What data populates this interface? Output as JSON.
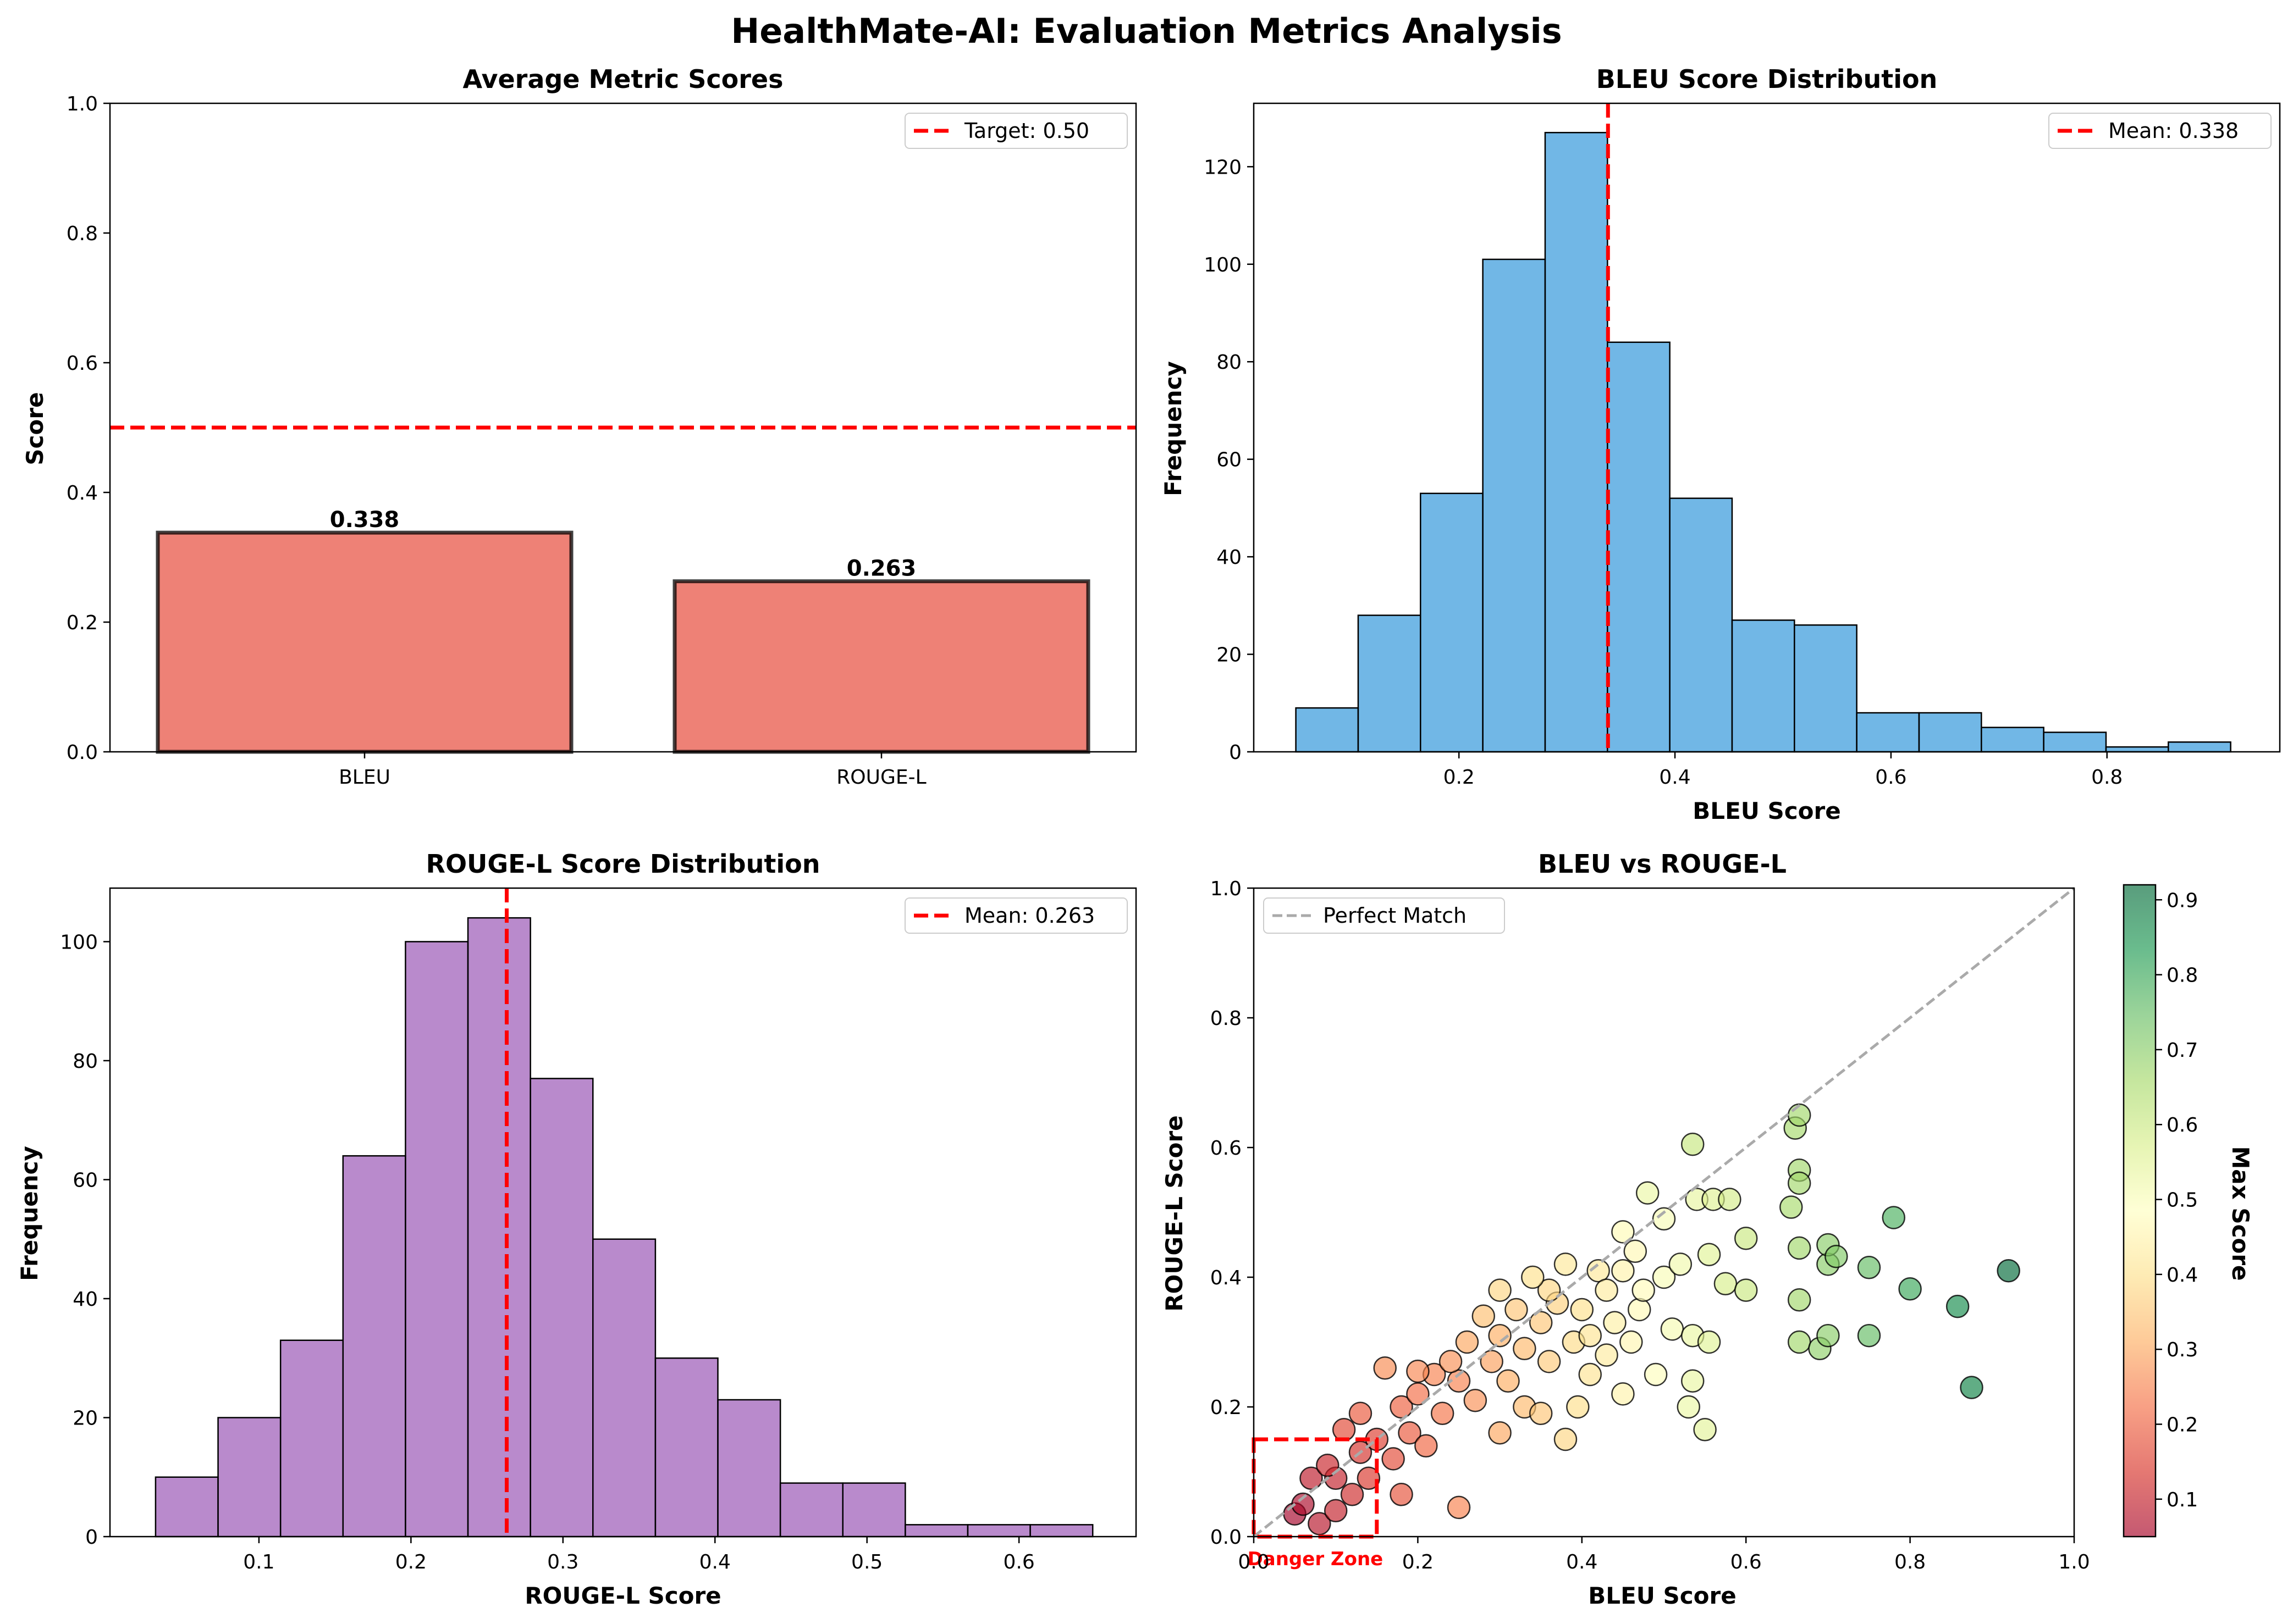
{
  "figure": {
    "suptitle": "HealthMate-AI: Evaluation Metrics Analysis"
  },
  "colors": {
    "bar_fill": "#e74c3c",
    "bleu_hist": "#3498db",
    "rouge_hist": "#9b59b6",
    "mean_line": "#ff0000",
    "perfect_line": "#aaaaaa",
    "danger": "#ff0000"
  },
  "chart_data": [
    {
      "type": "bar",
      "title": "Average Metric Scores",
      "xlabel": "",
      "ylabel": "Score",
      "categories": [
        "BLEU",
        "ROUGE-L"
      ],
      "values": [
        0.338,
        0.263
      ],
      "value_labels": [
        "0.338",
        "0.263"
      ],
      "ylim": [
        0,
        1
      ],
      "yticks": [
        "0.0",
        "0.2",
        "0.4",
        "0.6",
        "0.8",
        "1.0"
      ],
      "reference_line": {
        "value": 0.5,
        "label": "Target: 0.50"
      },
      "legend": "top-right"
    },
    {
      "type": "bar",
      "subtype": "histogram",
      "title": "BLEU Score Distribution",
      "xlabel": "BLEU Score",
      "ylabel": "Frequency",
      "bin_start": 0.049,
      "bin_width": 0.0577,
      "counts": [
        9,
        28,
        53,
        101,
        127,
        84,
        52,
        27,
        26,
        8,
        8,
        5,
        4,
        1,
        2
      ],
      "xlim": [
        0.01,
        0.96
      ],
      "ylim": [
        0,
        133
      ],
      "xticks": [
        "0.2",
        "0.4",
        "0.6",
        "0.8"
      ],
      "yticks": [
        "0",
        "20",
        "40",
        "60",
        "80",
        "100",
        "120"
      ],
      "mean_line": {
        "value": 0.338,
        "label": "Mean: 0.338"
      },
      "legend": "top-right"
    },
    {
      "type": "bar",
      "subtype": "histogram",
      "title": "ROUGE-L Score Distribution",
      "xlabel": "ROUGE-L Score",
      "ylabel": "Frequency",
      "bin_start": 0.032,
      "bin_width": 0.0411,
      "counts": [
        10,
        20,
        33,
        64,
        100,
        104,
        77,
        50,
        30,
        23,
        9,
        9,
        2,
        2,
        2
      ],
      "xlim": [
        0.002,
        0.677
      ],
      "ylim": [
        0,
        109
      ],
      "xticks": [
        "0.1",
        "0.2",
        "0.3",
        "0.4",
        "0.5",
        "0.6"
      ],
      "yticks": [
        "0",
        "20",
        "40",
        "60",
        "80",
        "100"
      ],
      "mean_line": {
        "value": 0.263,
        "label": "Mean: 0.263"
      },
      "legend": "top-right"
    },
    {
      "type": "scatter",
      "title": "BLEU vs ROUGE-L",
      "xlabel": "BLEU Score",
      "ylabel": "ROUGE-L Score",
      "xlim": [
        0,
        1
      ],
      "ylim": [
        0,
        1
      ],
      "xticks": [
        "0.0",
        "0.2",
        "0.4",
        "0.6",
        "0.8",
        "1.0"
      ],
      "yticks": [
        "0.0",
        "0.2",
        "0.4",
        "0.6",
        "0.8",
        "1.0"
      ],
      "reference_line": {
        "label": "Perfect Match",
        "from": [
          0,
          0
        ],
        "to": [
          1,
          1
        ]
      },
      "danger_zone": {
        "x": [
          0,
          0.15
        ],
        "y": [
          0,
          0.15
        ],
        "label": "Danger Zone"
      },
      "colorbar": {
        "label": "Max Score",
        "range": [
          0.05,
          0.92
        ],
        "ticks": [
          "0.1",
          "0.2",
          "0.3",
          "0.4",
          "0.5",
          "0.6",
          "0.7",
          "0.8",
          "0.9"
        ],
        "colormap": "RdYlGn"
      },
      "legend": "top-left",
      "points": [
        [
          0.92,
          0.41
        ],
        [
          0.875,
          0.23
        ],
        [
          0.858,
          0.355
        ],
        [
          0.8,
          0.382
        ],
        [
          0.78,
          0.492
        ],
        [
          0.75,
          0.31
        ],
        [
          0.75,
          0.415
        ],
        [
          0.71,
          0.432
        ],
        [
          0.7,
          0.42
        ],
        [
          0.7,
          0.45
        ],
        [
          0.7,
          0.31
        ],
        [
          0.69,
          0.29
        ],
        [
          0.665,
          0.65
        ],
        [
          0.665,
          0.565
        ],
        [
          0.665,
          0.545
        ],
        [
          0.665,
          0.445
        ],
        [
          0.665,
          0.365
        ],
        [
          0.665,
          0.3
        ],
        [
          0.66,
          0.63
        ],
        [
          0.655,
          0.508
        ],
        [
          0.6,
          0.46
        ],
        [
          0.6,
          0.38
        ],
        [
          0.58,
          0.52
        ],
        [
          0.575,
          0.39
        ],
        [
          0.56,
          0.52
        ],
        [
          0.555,
          0.435
        ],
        [
          0.555,
          0.3
        ],
        [
          0.55,
          0.165
        ],
        [
          0.54,
          0.52
        ],
        [
          0.535,
          0.605
        ],
        [
          0.535,
          0.31
        ],
        [
          0.535,
          0.24
        ],
        [
          0.53,
          0.2
        ],
        [
          0.52,
          0.42
        ],
        [
          0.51,
          0.32
        ],
        [
          0.5,
          0.49
        ],
        [
          0.5,
          0.4
        ],
        [
          0.49,
          0.25
        ],
        [
          0.48,
          0.53
        ],
        [
          0.475,
          0.38
        ],
        [
          0.47,
          0.35
        ],
        [
          0.465,
          0.44
        ],
        [
          0.46,
          0.3
        ],
        [
          0.45,
          0.47
        ],
        [
          0.45,
          0.41
        ],
        [
          0.45,
          0.22
        ],
        [
          0.44,
          0.33
        ],
        [
          0.43,
          0.38
        ],
        [
          0.43,
          0.28
        ],
        [
          0.42,
          0.41
        ],
        [
          0.41,
          0.25
        ],
        [
          0.4,
          0.35
        ],
        [
          0.395,
          0.2
        ],
        [
          0.39,
          0.3
        ],
        [
          0.38,
          0.42
        ],
        [
          0.38,
          0.15
        ],
        [
          0.37,
          0.36
        ],
        [
          0.36,
          0.27
        ],
        [
          0.35,
          0.33
        ],
        [
          0.35,
          0.19
        ],
        [
          0.34,
          0.4
        ],
        [
          0.33,
          0.29
        ],
        [
          0.33,
          0.2
        ],
        [
          0.32,
          0.35
        ],
        [
          0.31,
          0.24
        ],
        [
          0.3,
          0.31
        ],
        [
          0.3,
          0.16
        ],
        [
          0.29,
          0.27
        ],
        [
          0.28,
          0.34
        ],
        [
          0.27,
          0.21
        ],
        [
          0.26,
          0.3
        ],
        [
          0.25,
          0.24
        ],
        [
          0.25,
          0.045
        ],
        [
          0.24,
          0.27
        ],
        [
          0.23,
          0.19
        ],
        [
          0.22,
          0.25
        ],
        [
          0.21,
          0.14
        ],
        [
          0.2,
          0.22
        ],
        [
          0.2,
          0.255
        ],
        [
          0.19,
          0.16
        ],
        [
          0.18,
          0.065
        ],
        [
          0.18,
          0.2
        ],
        [
          0.17,
          0.12
        ],
        [
          0.16,
          0.26
        ],
        [
          0.15,
          0.15
        ],
        [
          0.14,
          0.09
        ],
        [
          0.13,
          0.19
        ],
        [
          0.13,
          0.13
        ],
        [
          0.12,
          0.065
        ],
        [
          0.11,
          0.165
        ],
        [
          0.1,
          0.09
        ],
        [
          0.1,
          0.04
        ],
        [
          0.09,
          0.11
        ],
        [
          0.08,
          0.02
        ],
        [
          0.07,
          0.09
        ],
        [
          0.06,
          0.05
        ],
        [
          0.05,
          0.035
        ],
        [
          0.3,
          0.38
        ],
        [
          0.36,
          0.38
        ],
        [
          0.41,
          0.31
        ]
      ]
    }
  ]
}
